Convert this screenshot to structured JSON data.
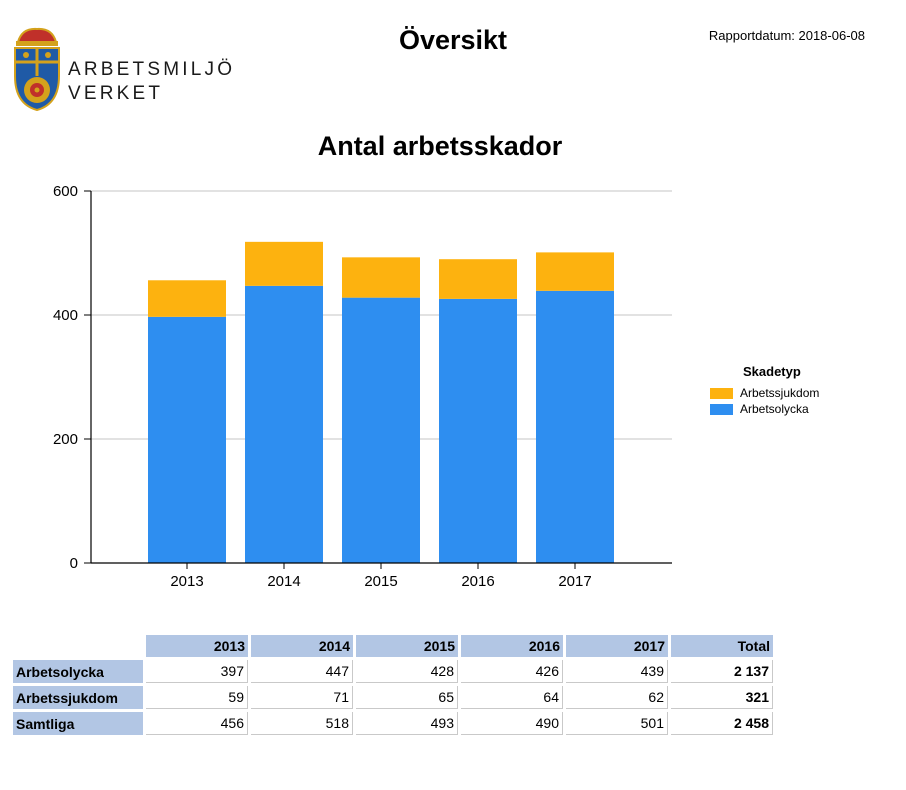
{
  "header": {
    "logo_line1": "ARBETSMILJÖ",
    "logo_line2": "VERKET",
    "title": "Översikt",
    "report_date": "Rapportdatum: 2018-06-08"
  },
  "colors": {
    "arbetsolycka": "#2e8ef0",
    "arbetssjukdom": "#fdb20f",
    "table_header": "#b2c6e4"
  },
  "chart_data": {
    "type": "bar",
    "stacked": true,
    "title": "Antal arbetsskador",
    "xlabel": "",
    "ylabel": "",
    "categories": [
      "2013",
      "2014",
      "2015",
      "2016",
      "2017"
    ],
    "series": [
      {
        "name": "Arbetsolycka",
        "values": [
          397,
          447,
          428,
          426,
          439
        ]
      },
      {
        "name": "Arbetssjukdom",
        "values": [
          59,
          71,
          65,
          64,
          62
        ]
      }
    ],
    "ylim": [
      0,
      600
    ],
    "yticks": [
      0,
      200,
      400,
      600
    ],
    "grid": true,
    "legend": {
      "title": "Skadetyp",
      "position": "right"
    }
  },
  "table": {
    "columns": [
      "2013",
      "2014",
      "2015",
      "2016",
      "2017",
      "Total"
    ],
    "rows": [
      {
        "label": "Arbetsolycka",
        "values": [
          "397",
          "447",
          "428",
          "426",
          "439"
        ],
        "total": "2 137"
      },
      {
        "label": "Arbetssjukdom",
        "values": [
          "59",
          "71",
          "65",
          "64",
          "62"
        ],
        "total": "321"
      },
      {
        "label": "Samtliga",
        "values": [
          "456",
          "518",
          "493",
          "490",
          "501"
        ],
        "total": "2 458"
      }
    ]
  }
}
